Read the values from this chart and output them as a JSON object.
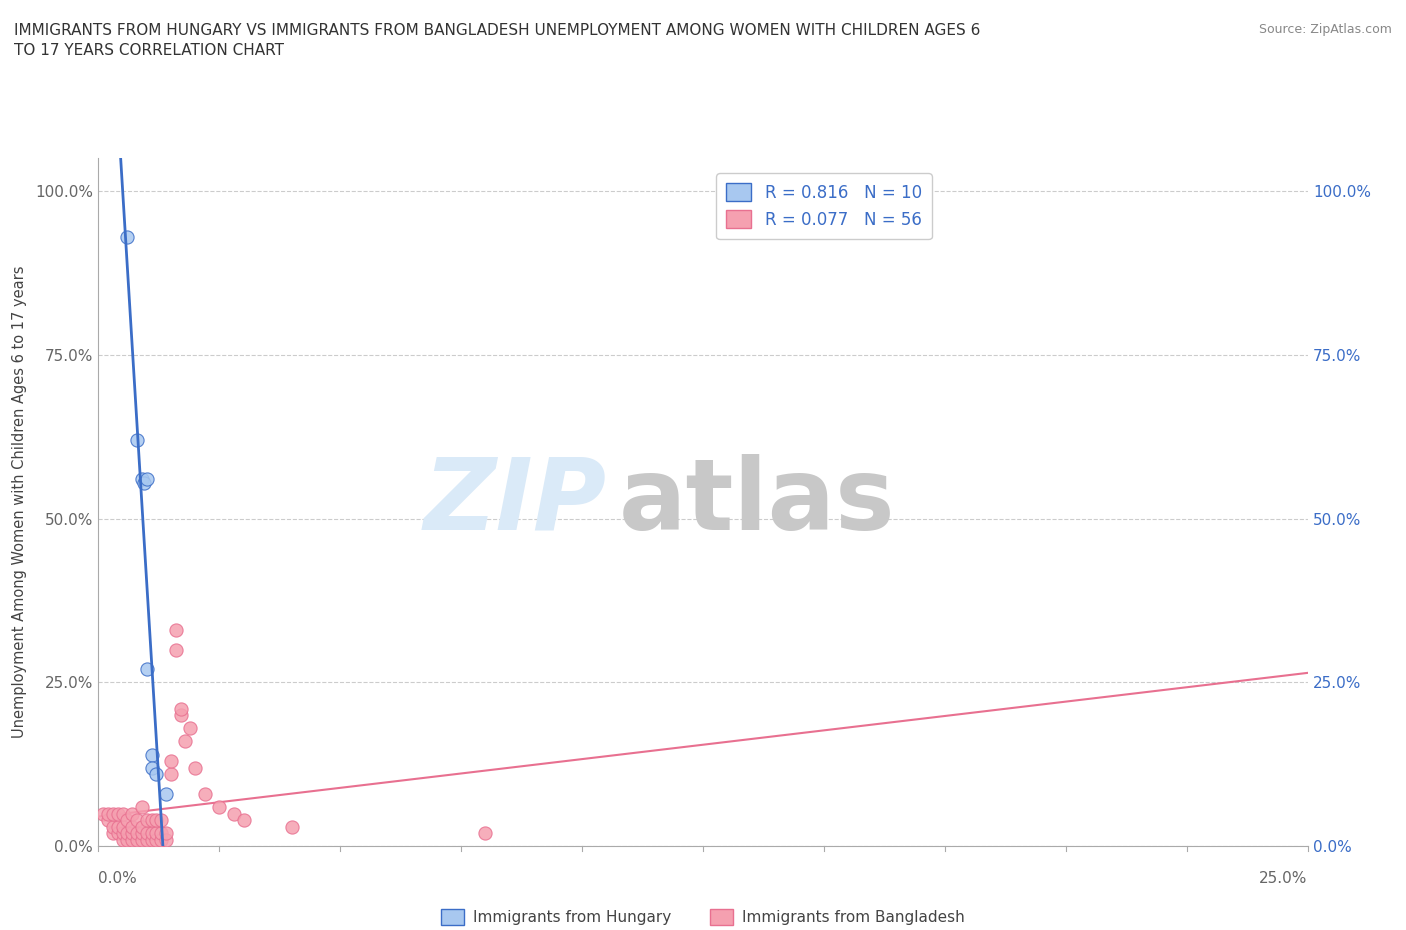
{
  "title": "IMMIGRANTS FROM HUNGARY VS IMMIGRANTS FROM BANGLADESH UNEMPLOYMENT AMONG WOMEN WITH CHILDREN AGES 6\nTO 17 YEARS CORRELATION CHART",
  "source_text": "Source: ZipAtlas.com",
  "ylabel": "Unemployment Among Women with Children Ages 6 to 17 years",
  "xlabel_hungary": "Immigrants from Hungary",
  "xlabel_bangladesh": "Immigrants from Bangladesh",
  "xlim": [
    0.0,
    0.25
  ],
  "ylim": [
    0.0,
    1.05
  ],
  "yticks": [
    0.0,
    0.25,
    0.5,
    0.75,
    1.0
  ],
  "ytick_labels": [
    "0.0%",
    "25.0%",
    "50.0%",
    "75.0%",
    "100.0%"
  ],
  "xtick_left": "0.0%",
  "xtick_right": "25.0%",
  "hungary_R": 0.816,
  "hungary_N": 10,
  "bangladesh_R": 0.077,
  "bangladesh_N": 56,
  "hungary_color": "#a8c8f0",
  "hungary_line_color": "#3b6dc7",
  "bangladesh_color": "#f5a0b0",
  "bangladesh_line_color": "#e87090",
  "hungary_x": [
    0.006,
    0.008,
    0.009,
    0.0095,
    0.01,
    0.01,
    0.011,
    0.011,
    0.012,
    0.014
  ],
  "hungary_y": [
    0.93,
    0.62,
    0.56,
    0.555,
    0.56,
    0.27,
    0.14,
    0.12,
    0.11,
    0.08
  ],
  "bangladesh_x": [
    0.001,
    0.002,
    0.002,
    0.003,
    0.003,
    0.003,
    0.004,
    0.004,
    0.004,
    0.005,
    0.005,
    0.005,
    0.005,
    0.006,
    0.006,
    0.006,
    0.007,
    0.007,
    0.007,
    0.007,
    0.008,
    0.008,
    0.008,
    0.009,
    0.009,
    0.009,
    0.009,
    0.01,
    0.01,
    0.01,
    0.011,
    0.011,
    0.011,
    0.012,
    0.012,
    0.012,
    0.013,
    0.013,
    0.013,
    0.014,
    0.014,
    0.015,
    0.015,
    0.016,
    0.016,
    0.017,
    0.017,
    0.018,
    0.019,
    0.02,
    0.022,
    0.025,
    0.028,
    0.03,
    0.04,
    0.08
  ],
  "bangladesh_y": [
    0.05,
    0.04,
    0.05,
    0.02,
    0.03,
    0.05,
    0.02,
    0.03,
    0.05,
    0.01,
    0.02,
    0.03,
    0.05,
    0.01,
    0.02,
    0.04,
    0.01,
    0.02,
    0.03,
    0.05,
    0.01,
    0.02,
    0.04,
    0.01,
    0.02,
    0.03,
    0.06,
    0.01,
    0.02,
    0.04,
    0.01,
    0.02,
    0.04,
    0.01,
    0.02,
    0.04,
    0.01,
    0.02,
    0.04,
    0.01,
    0.02,
    0.11,
    0.13,
    0.3,
    0.33,
    0.2,
    0.21,
    0.16,
    0.18,
    0.12,
    0.08,
    0.06,
    0.05,
    0.04,
    0.03,
    0.02
  ]
}
